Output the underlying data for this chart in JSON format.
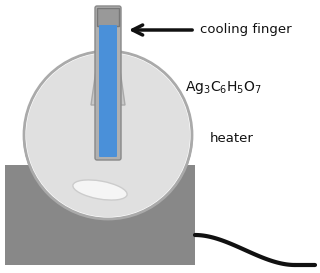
{
  "bg_color": "#ffffff",
  "heater_color": "#888888",
  "flask_border_color": "#aaaaaa",
  "flask_fill_color": "#e0e0e0",
  "flask_inner_color": "#e8e8e8",
  "neck_color": "#c8c8c8",
  "neck_border": "#aaaaaa",
  "tube_outer_color": "#b0b0b0",
  "tube_inner_color": "#4a90d9",
  "tube_top_color": "#999999",
  "powder_color": "#f5f5f5",
  "powder_border": "#dddddd",
  "arrow_color": "#111111",
  "label_cooling": "cooling finger",
  "label_chemical": "Ag$_3$C$_6$H$_5$O$_7$",
  "label_heater": "heater",
  "cord_color": "#111111"
}
